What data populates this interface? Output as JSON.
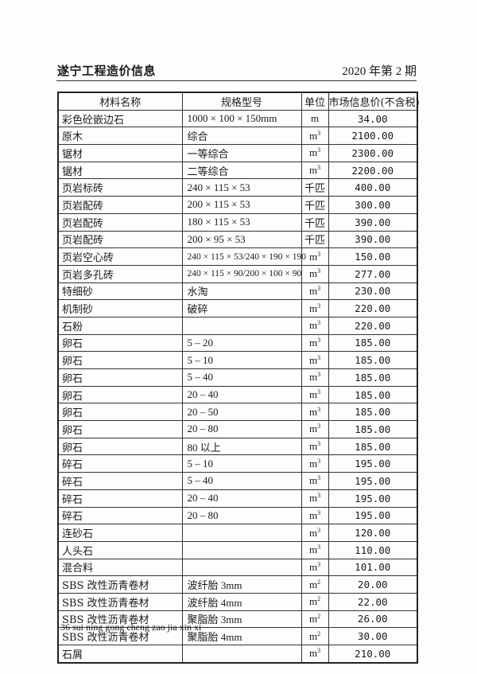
{
  "header": {
    "title": "遂宁工程造价信息",
    "issue": "2020 年第 2 期"
  },
  "table": {
    "columns": [
      "材料名称",
      "规格型号",
      "单位",
      "市场信息价(不含税)"
    ],
    "rows": [
      {
        "name": "彩色砼嵌边石",
        "spec": "1000 × 100 × 150mm",
        "unit": "m",
        "sup": "",
        "price": "34.00"
      },
      {
        "name": "原木",
        "spec": "综合",
        "unit": "m",
        "sup": "3",
        "price": "2100.00"
      },
      {
        "name": "锯材",
        "spec": "一等综合",
        "unit": "m",
        "sup": "3",
        "price": "2300.00"
      },
      {
        "name": "锯材",
        "spec": "二等综合",
        "unit": "m",
        "sup": "3",
        "price": "2200.00"
      },
      {
        "name": "页岩标砖",
        "spec": "240 × 115 × 53",
        "unit": "千匹",
        "sup": "",
        "price": "400.00"
      },
      {
        "name": "页岩配砖",
        "spec": "200 × 115 × 53",
        "unit": "千匹",
        "sup": "",
        "price": "300.00"
      },
      {
        "name": "页岩配砖",
        "spec": "180 × 115 × 53",
        "unit": "千匹",
        "sup": "",
        "price": "390.00"
      },
      {
        "name": "页岩配砖",
        "spec": "200 × 95 × 53",
        "unit": "千匹",
        "sup": "",
        "price": "390.00"
      },
      {
        "name": "页岩空心砖",
        "spec": "240 × 115 × 53/240 × 190 × 190",
        "unit": "m",
        "sup": "3",
        "price": "150.00"
      },
      {
        "name": "页岩多孔砖",
        "spec": "240 × 115 × 90/200 × 100 × 90",
        "unit": "m",
        "sup": "3",
        "price": "277.00"
      },
      {
        "name": "特细砂",
        "spec": "水淘",
        "unit": "m",
        "sup": "3",
        "price": "230.00"
      },
      {
        "name": "机制砂",
        "spec": "破碎",
        "unit": "m",
        "sup": "3",
        "price": "220.00"
      },
      {
        "name": "石粉",
        "spec": "",
        "unit": "m",
        "sup": "3",
        "price": "220.00"
      },
      {
        "name": "卵石",
        "spec": "5 – 20",
        "unit": "m",
        "sup": "3",
        "price": "185.00"
      },
      {
        "name": "卵石",
        "spec": "5 – 10",
        "unit": "m",
        "sup": "3",
        "price": "185.00"
      },
      {
        "name": "卵石",
        "spec": "5 – 40",
        "unit": "m",
        "sup": "3",
        "price": "185.00"
      },
      {
        "name": "卵石",
        "spec": "20 – 40",
        "unit": "m",
        "sup": "3",
        "price": "185.00"
      },
      {
        "name": "卵石",
        "spec": "20 – 50",
        "unit": "m",
        "sup": "3",
        "price": "185.00"
      },
      {
        "name": "卵石",
        "spec": "20 – 80",
        "unit": "m",
        "sup": "3",
        "price": "185.00"
      },
      {
        "name": "卵石",
        "spec": "80 以上",
        "unit": "m",
        "sup": "3",
        "price": "185.00"
      },
      {
        "name": "碎石",
        "spec": "5 – 10",
        "unit": "m",
        "sup": "3",
        "price": "195.00"
      },
      {
        "name": "碎石",
        "spec": "5 – 40",
        "unit": "m",
        "sup": "3",
        "price": "195.00"
      },
      {
        "name": "碎石",
        "spec": "20 – 40",
        "unit": "m",
        "sup": "3",
        "price": "195.00"
      },
      {
        "name": "碎石",
        "spec": "20 – 80",
        "unit": "m",
        "sup": "3",
        "price": "195.00"
      },
      {
        "name": "连砂石",
        "spec": "",
        "unit": "m",
        "sup": "3",
        "price": "120.00"
      },
      {
        "name": "人头石",
        "spec": "",
        "unit": "m",
        "sup": "3",
        "price": "110.00"
      },
      {
        "name": "混合料",
        "spec": "",
        "unit": "m",
        "sup": "3",
        "price": "101.00"
      },
      {
        "name": "SBS 改性沥青卷材",
        "spec": "波纤胎 3mm",
        "unit": "m",
        "sup": "2",
        "price": "20.00"
      },
      {
        "name": "SBS 改性沥青卷材",
        "spec": "波纤胎 4mm",
        "unit": "m",
        "sup": "2",
        "price": "22.00"
      },
      {
        "name": "SBS 改性沥青卷材",
        "spec": "聚脂胎 3mm",
        "unit": "m",
        "sup": "2",
        "price": "26.00"
      },
      {
        "name": "SBS 改性沥青卷材",
        "spec": "聚脂胎 4mm",
        "unit": "m",
        "sup": "2",
        "price": "30.00"
      },
      {
        "name": "石屑",
        "spec": "",
        "unit": "m",
        "sup": "3",
        "price": "210.00"
      }
    ]
  },
  "footer": {
    "text": "36 sui ning gong cheng zao jia xin xi"
  }
}
